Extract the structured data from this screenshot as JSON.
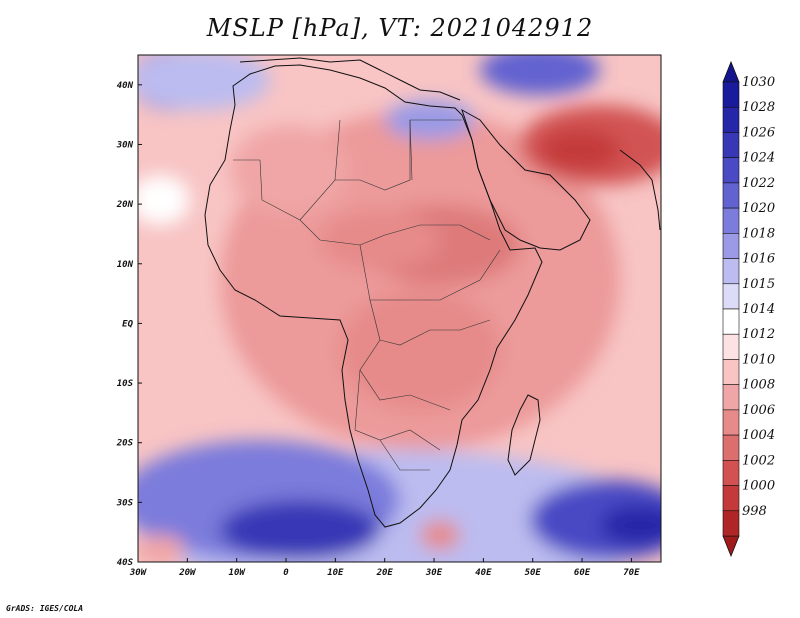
{
  "title": "MSLP [hPa], VT: 2021042912",
  "credit": "GrADS: IGES/COLA",
  "map": {
    "lon_range": [
      -30,
      76
    ],
    "lat_range": [
      -40,
      45
    ],
    "lon_ticks": [
      {
        "value": -30,
        "label": "30W"
      },
      {
        "value": -20,
        "label": "20W"
      },
      {
        "value": -10,
        "label": "10W"
      },
      {
        "value": 0,
        "label": "0"
      },
      {
        "value": 10,
        "label": "10E"
      },
      {
        "value": 20,
        "label": "20E"
      },
      {
        "value": 30,
        "label": "30E"
      },
      {
        "value": 40,
        "label": "40E"
      },
      {
        "value": 50,
        "label": "50E"
      },
      {
        "value": 60,
        "label": "60E"
      },
      {
        "value": 70,
        "label": "70E"
      }
    ],
    "lat_ticks": [
      {
        "value": 40,
        "label": "40N"
      },
      {
        "value": 30,
        "label": "30N"
      },
      {
        "value": 20,
        "label": "20N"
      },
      {
        "value": 10,
        "label": "10N"
      },
      {
        "value": 0,
        "label": "EQ"
      },
      {
        "value": -10,
        "label": "10S"
      },
      {
        "value": -20,
        "label": "20S"
      },
      {
        "value": -30,
        "label": "30S"
      },
      {
        "value": -40,
        "label": "40S"
      }
    ]
  },
  "colorbar": {
    "levels": [
      {
        "label": "1030",
        "color": "#1a1a9c"
      },
      {
        "label": "1028",
        "color": "#2626a8"
      },
      {
        "label": "1026",
        "color": "#3838b6"
      },
      {
        "label": "1024",
        "color": "#4a4ac4"
      },
      {
        "label": "1022",
        "color": "#6262d0"
      },
      {
        "label": "1020",
        "color": "#7c7cdc"
      },
      {
        "label": "1018",
        "color": "#9a9ae6"
      },
      {
        "label": "1016",
        "color": "#bcbcf0"
      },
      {
        "label": "1015",
        "color": "#dcdcf8"
      },
      {
        "label": "1014",
        "color": "#ffffff"
      },
      {
        "label": "1012",
        "color": "#fce2e2"
      },
      {
        "label": "1010",
        "color": "#f8c4c4"
      },
      {
        "label": "1008",
        "color": "#f0a6a6"
      },
      {
        "label": "1006",
        "color": "#e68a8a"
      },
      {
        "label": "1004",
        "color": "#dc6e6e"
      },
      {
        "label": "1002",
        "color": "#d25252"
      },
      {
        "label": "1000",
        "color": "#c43a3a"
      },
      {
        "label": "998",
        "color": "#b02626"
      }
    ],
    "top_arrow_color": "#14148c",
    "bottom_arrow_color": "#a01c1c"
  }
}
